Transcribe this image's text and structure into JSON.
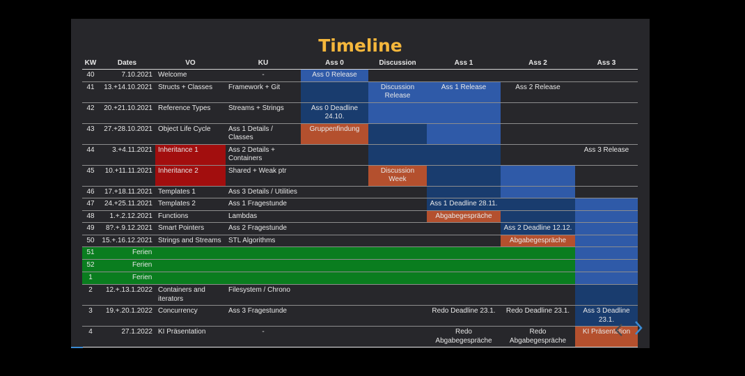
{
  "slide": {
    "title": "Timeline",
    "nav": {
      "prev_icon": "chevron-left-icon",
      "next_icon": "chevron-right-icon"
    }
  },
  "colors": {
    "title": "#f5b73c",
    "blue": "#2f5aa8",
    "dark_blue": "#193c6e",
    "orange": "#b4502e",
    "red": "#a20e0e",
    "green": "#0a7d1f",
    "background": "#27272b"
  },
  "table": {
    "headers": [
      "KW",
      "Dates",
      "VO",
      "KU",
      "Ass 0",
      "Discussion",
      "Ass 1",
      "Ass 2",
      "Ass 3"
    ],
    "rows": [
      {
        "kw": "40",
        "dates": "7.10.2021",
        "vo": "Welcome",
        "ku": "-",
        "ass0": "Ass 0 Release",
        "disc": "",
        "ass1": "",
        "ass2": "",
        "ass3": ""
      },
      {
        "kw": "41",
        "dates": "13.+14.10.2021",
        "vo": "Structs + Classes",
        "ku": "Framework + Git",
        "ass0": "",
        "disc": "Discussion Release",
        "ass1": "Ass 1 Release",
        "ass2": "Ass 2 Release",
        "ass3": ""
      },
      {
        "kw": "42",
        "dates": "20.+21.10.2021",
        "vo": "Reference Types",
        "ku": "Streams + Strings",
        "ass0": "Ass 0 Deadline 24.10.",
        "disc": "",
        "ass1": "",
        "ass2": "",
        "ass3": ""
      },
      {
        "kw": "43",
        "dates": "27.+28.10.2021",
        "vo": "Object Life Cycle",
        "ku": "Ass 1 Details / Classes",
        "ass0": "Gruppenfindung",
        "disc": "",
        "ass1": "",
        "ass2": "",
        "ass3": ""
      },
      {
        "kw": "44",
        "dates": "3.+4.11.2021",
        "vo": "Inheritance 1",
        "ku": "Ass 2 Details + Containers",
        "ass0": "",
        "disc": "",
        "ass1": "",
        "ass2": "",
        "ass3": "Ass 3 Release"
      },
      {
        "kw": "45",
        "dates": "10.+11.11.2021",
        "vo": "Inheritance 2",
        "ku": "Shared + Weak ptr",
        "ass0": "",
        "disc": "Discussion Week",
        "ass1": "",
        "ass2": "",
        "ass3": ""
      },
      {
        "kw": "46",
        "dates": "17.+18.11.2021",
        "vo": "Templates 1",
        "ku": "Ass 3 Details / Utilities",
        "ass0": "",
        "disc": "",
        "ass1": "",
        "ass2": "",
        "ass3": ""
      },
      {
        "kw": "47",
        "dates": "24.+25.11.2021",
        "vo": "Templates 2",
        "ku": "Ass 1 Fragestunde",
        "ass0": "",
        "disc": "",
        "ass1": "Ass 1 Deadline 28.11.",
        "ass2": "",
        "ass3": ""
      },
      {
        "kw": "48",
        "dates": "1.+.2.12.2021",
        "vo": "Functions",
        "ku": "Lambdas",
        "ass0": "",
        "disc": "",
        "ass1": "Abgabegespräche",
        "ass2": "",
        "ass3": ""
      },
      {
        "kw": "49",
        "dates": "8?.+.9.12.2021",
        "vo": "Smart Pointers",
        "ku": "Ass 2 Fragestunde",
        "ass0": "",
        "disc": "",
        "ass1": "",
        "ass2": "Ass 2 Deadline 12.12.",
        "ass3": ""
      },
      {
        "kw": "50",
        "dates": "15.+.16.12.2021",
        "vo": "Strings and Streams",
        "ku": "STL Algorithms",
        "ass0": "",
        "disc": "",
        "ass1": "",
        "ass2": "Abgabegespräche",
        "ass3": ""
      },
      {
        "kw": "51",
        "dates": "Ferien"
      },
      {
        "kw": "52",
        "dates": "Ferien"
      },
      {
        "kw": "1",
        "dates": "Ferien"
      },
      {
        "kw": "2",
        "dates": "12.+.13.1.2022",
        "vo": "Containers and iterators",
        "ku": "Filesystem / Chrono",
        "ass0": "",
        "disc": "",
        "ass1": "",
        "ass2": "",
        "ass3": ""
      },
      {
        "kw": "3",
        "dates": "19.+.20.1.2022",
        "vo": "Concurrency",
        "ku": "Ass 3 Fragestunde",
        "ass0": "",
        "disc": "",
        "ass1": "Redo Deadline 23.1.",
        "ass2": "Redo Deadline 23.1.",
        "ass3": "Ass 3 Deadline 23.1."
      },
      {
        "kw": "4",
        "dates": "27.1.2022",
        "vo": "KI Präsentation",
        "ku": "-",
        "ass0": "",
        "disc": "",
        "ass1": "Redo Abgabegespräche",
        "ass2": "Redo Abgabegespräche",
        "ass3": "KI Präsentation"
      }
    ]
  }
}
